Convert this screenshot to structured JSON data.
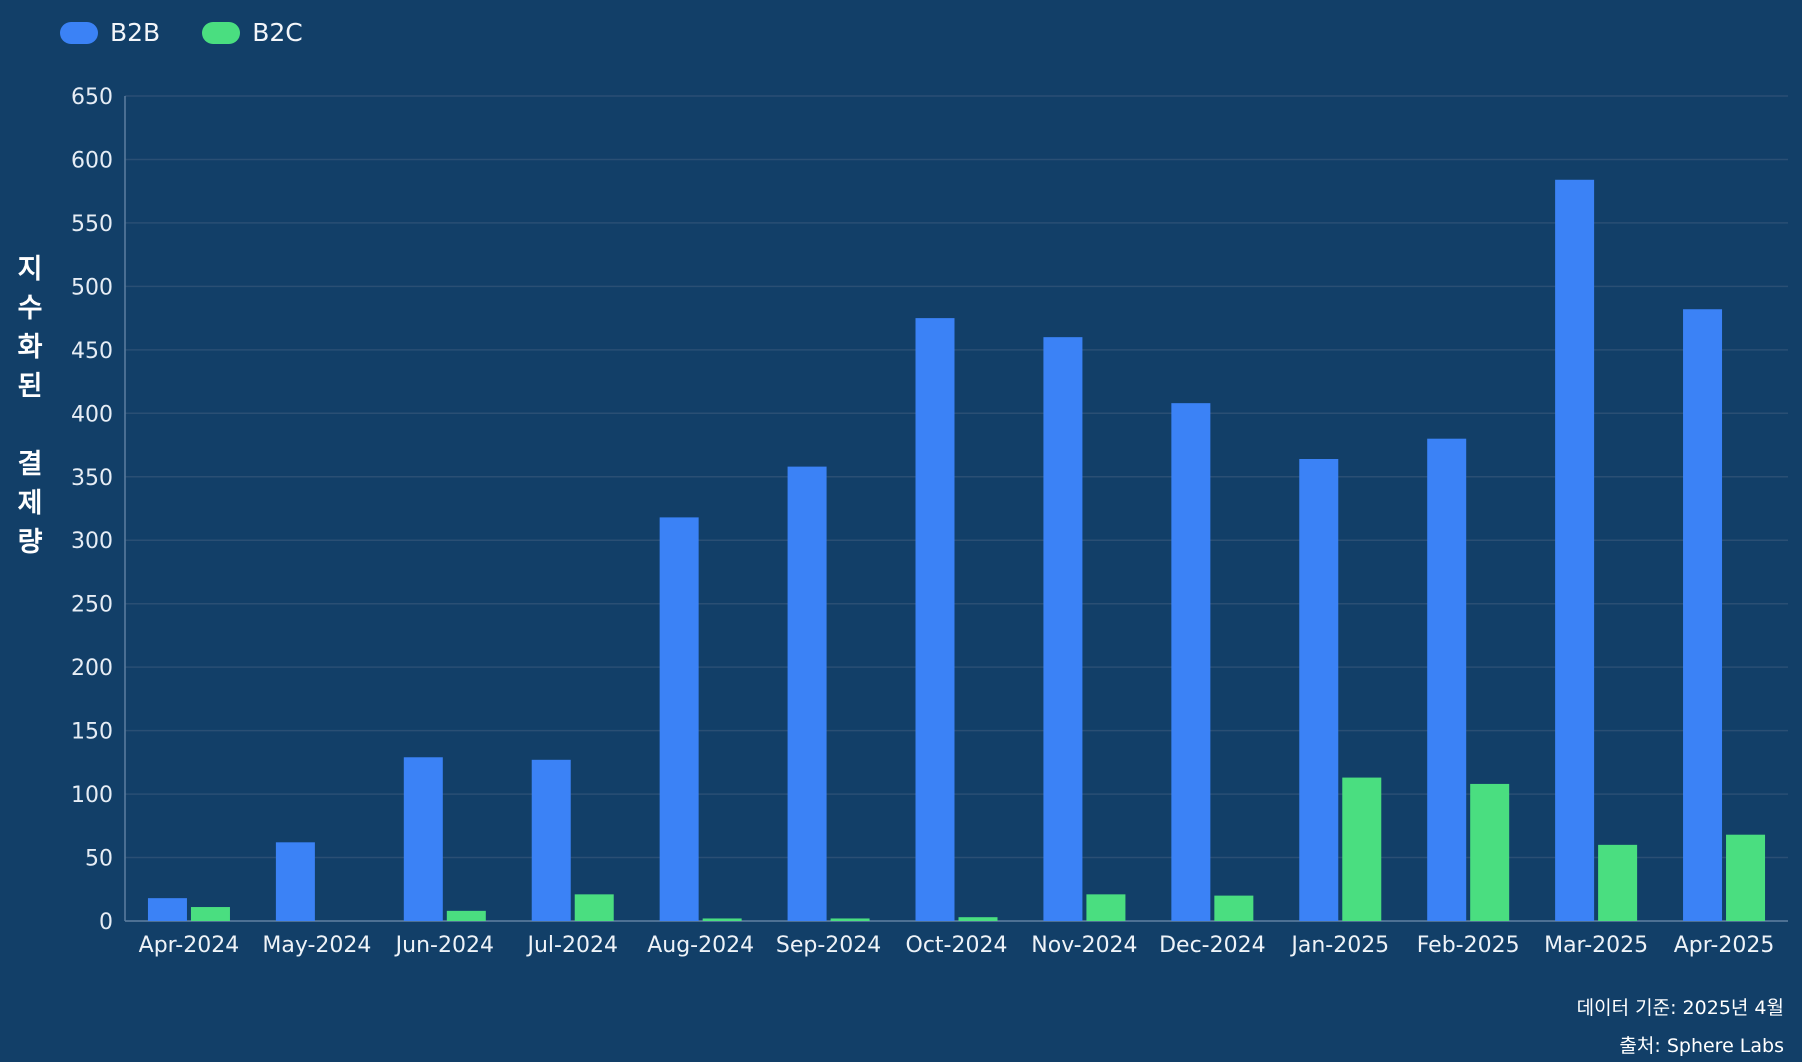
{
  "chart_data": {
    "type": "bar",
    "title": "",
    "xlabel": "",
    "ylabel": "지수화된 결제량",
    "ylim": [
      0,
      650
    ],
    "yticks": [
      0,
      50,
      100,
      150,
      200,
      250,
      300,
      350,
      400,
      450,
      500,
      550,
      600,
      650
    ],
    "grid": true,
    "legend_position": "top-left",
    "categories": [
      "Apr-2024",
      "May-2024",
      "Jun-2024",
      "Jul-2024",
      "Aug-2024",
      "Sep-2024",
      "Oct-2024",
      "Nov-2024",
      "Dec-2024",
      "Jan-2025",
      "Feb-2025",
      "Mar-2025",
      "Apr-2025"
    ],
    "series": [
      {
        "name": "B2B",
        "color": "#3b82f6",
        "values": [
          18,
          62,
          129,
          127,
          318,
          358,
          475,
          460,
          408,
          364,
          380,
          584,
          482
        ]
      },
      {
        "name": "B2C",
        "color": "#4ade80",
        "values": [
          11,
          0,
          8,
          21,
          2,
          2,
          3,
          21,
          20,
          113,
          108,
          60,
          68
        ]
      }
    ]
  },
  "legend": {
    "items": [
      {
        "label": "B2B",
        "color": "#3b82f6"
      },
      {
        "label": "B2C",
        "color": "#4ade80"
      }
    ]
  },
  "ylabel_lines": [
    "지",
    "수",
    "화",
    "된",
    "",
    "결",
    "제",
    "량"
  ],
  "footer": {
    "date_note": "데이터 기준: 2025년 4월",
    "source": "출처: Sphere Labs"
  },
  "colors": {
    "background": "#123f68",
    "grid": "#2a4f74",
    "axis": "#5d7f9f"
  }
}
